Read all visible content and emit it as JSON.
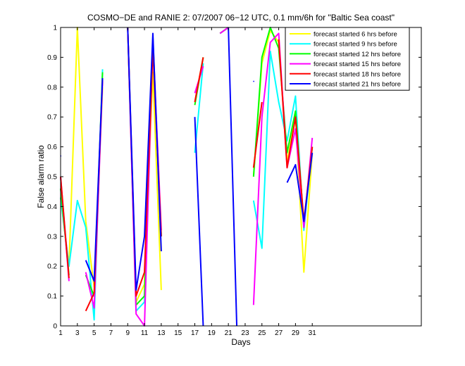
{
  "chart_data": {
    "type": "line",
    "title": "COSMO−DE and RANIE 2: 07/2007 06−12 UTC, 0.1 mm/6h for \"Baltic Sea coast\"",
    "xlabel": "Days",
    "ylabel": "False alarm ratio",
    "xlim": [
      1,
      44
    ],
    "ylim": [
      0,
      1
    ],
    "xticks": [
      1,
      3,
      5,
      7,
      9,
      11,
      13,
      15,
      17,
      19,
      21,
      23,
      25,
      27,
      29,
      31
    ],
    "yticks": [
      0,
      0.1,
      0.2,
      0.3,
      0.4,
      0.5,
      0.6,
      0.7,
      0.8,
      0.9,
      1
    ],
    "grid": false,
    "legend_position": "top-right",
    "series": [
      {
        "name": "forecast started  6 hrs before",
        "color": "#ffff00",
        "values": [
          0.43,
          0.2,
          1.0,
          0.35,
          0.13,
          0.8,
          null,
          null,
          1.0,
          0.08,
          0.14,
          0.85,
          0.12,
          null,
          null,
          null,
          0.75,
          0.9,
          null,
          0.98,
          1.0,
          null,
          null,
          0.5,
          0.88,
          0.99,
          0.95,
          0.55,
          0.7,
          0.18,
          0.58
        ]
      },
      {
        "name": "forecast started  9 hrs before",
        "color": "#00ffff",
        "values": [
          0.43,
          0.2,
          0.42,
          0.33,
          0.02,
          0.86,
          null,
          null,
          1.0,
          0.05,
          0.08,
          0.97,
          0.3,
          null,
          null,
          null,
          0.58,
          0.88,
          null,
          0.98,
          1.0,
          null,
          null,
          0.42,
          0.26,
          0.92,
          0.75,
          0.62,
          0.77,
          0.32,
          0.6
        ]
      },
      {
        "name": "forecast started  12 hrs before",
        "color": "#00ff00",
        "values": [
          0.46,
          0.17,
          null,
          0.17,
          0.1,
          0.85,
          null,
          null,
          1.0,
          0.07,
          0.1,
          0.95,
          0.3,
          null,
          null,
          null,
          0.74,
          0.9,
          null,
          0.98,
          1.0,
          null,
          null,
          0.5,
          0.9,
          1.0,
          0.93,
          0.58,
          0.72,
          0.34,
          0.6
        ]
      },
      {
        "name": "forecast started  15 hrs before",
        "color": "#ff00ff",
        "values": [
          0.5,
          0.15,
          null,
          0.18,
          0.06,
          0.82,
          null,
          null,
          1.0,
          0.04,
          0.0,
          0.96,
          0.32,
          null,
          null,
          null,
          0.78,
          0.87,
          null,
          0.98,
          1.0,
          null,
          null,
          0.07,
          0.7,
          0.95,
          0.98,
          0.53,
          0.66,
          0.33,
          0.63
        ]
      },
      {
        "name": "forecast started  18 hrs before",
        "color": "#ff0000",
        "values": [
          0.5,
          0.16,
          null,
          0.05,
          0.11,
          0.83,
          null,
          null,
          1.0,
          0.1,
          0.18,
          0.93,
          0.3,
          null,
          null,
          null,
          0.75,
          0.9,
          null,
          null,
          1.0,
          null,
          null,
          0.53,
          0.75,
          null,
          0.96,
          0.53,
          0.7,
          0.35,
          0.6
        ]
      },
      {
        "name": "forecast started  21 hrs before",
        "color": "#0000ff",
        "values": [
          0.57,
          null,
          null,
          0.22,
          0.15,
          0.83,
          null,
          null,
          1.0,
          0.12,
          0.3,
          0.98,
          0.25,
          null,
          null,
          null,
          0.7,
          0.0,
          null,
          null,
          1.0,
          0.0,
          null,
          0.82,
          null,
          null,
          null,
          0.48,
          0.54,
          0.35,
          0.58
        ]
      }
    ]
  }
}
